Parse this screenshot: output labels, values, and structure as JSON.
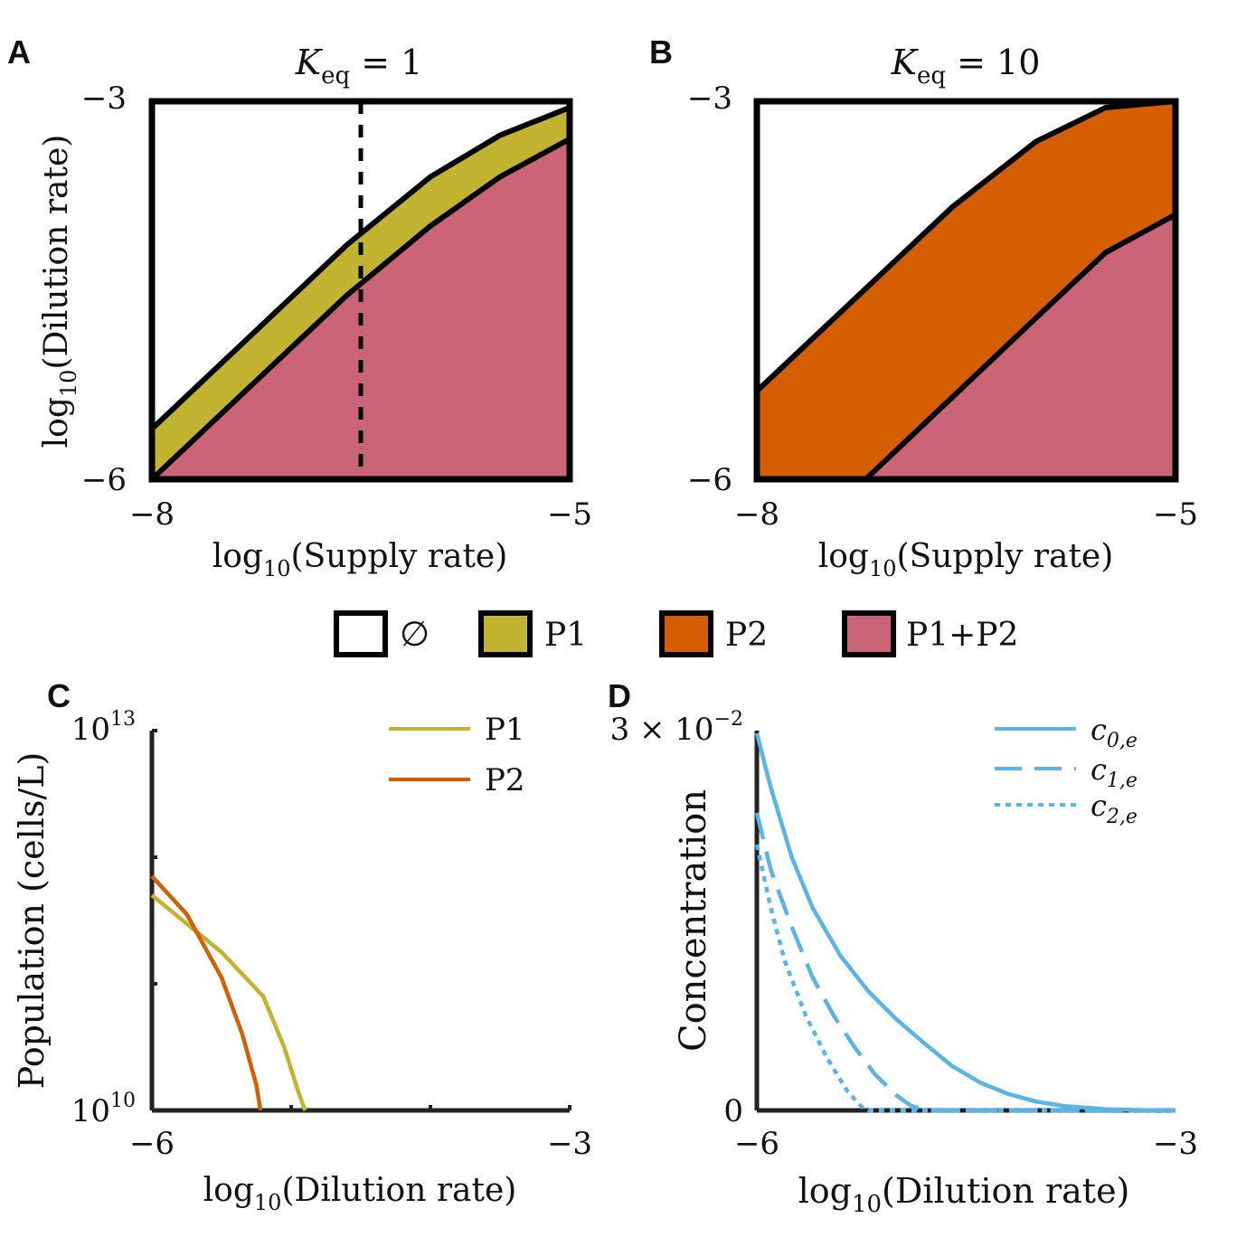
{
  "colors": {
    "none": "#ffffff",
    "P1": "#c2b331",
    "P2": "#d45e00",
    "P1P2": "#cb6476",
    "c_line": "#5ab4e5",
    "frame": "#000000"
  },
  "legend": {
    "items": [
      {
        "key": "none",
        "label": "∅"
      },
      {
        "key": "P1",
        "label": "P1"
      },
      {
        "key": "P2",
        "label": "P2"
      },
      {
        "key": "P1P2",
        "label": "P1+P2"
      }
    ]
  },
  "chart_data": [
    {
      "panel": "A",
      "type": "area",
      "title": "K_eq = 1",
      "title_main": "K",
      "title_sub": "eq",
      "title_rest": " = 1",
      "xlabel_prefix": "log",
      "xlabel_sub": "10",
      "xlabel_rest": "(Supply rate)",
      "ylabel_prefix": "log",
      "ylabel_sub": "10",
      "ylabel_rest": "(Dilution rate)",
      "xlim": [
        -8,
        -5
      ],
      "ylim": [
        -6,
        -3
      ],
      "xticks": [
        "−8",
        "−5"
      ],
      "yticks": [
        "−3",
        "−6"
      ],
      "boundaries": {
        "upper": {
          "x": [
            -8,
            -7.3,
            -6.6,
            -6.0,
            -5.5,
            -5.0
          ],
          "y": [
            -5.6,
            -4.87,
            -4.14,
            -3.6,
            -3.27,
            -3.05
          ]
        },
        "lower": {
          "x": [
            -8,
            -7.3,
            -6.6,
            -6.0,
            -5.5,
            -5.0
          ],
          "y": [
            -6.0,
            -5.27,
            -4.54,
            -3.99,
            -3.6,
            -3.3
          ]
        }
      },
      "regions": [
        "none",
        "P1",
        "P1P2"
      ],
      "vline_x": -6.5
    },
    {
      "panel": "B",
      "type": "area",
      "title": "K_eq = 10",
      "title_main": "K",
      "title_sub": "eq",
      "title_rest": " = 10",
      "xlabel_prefix": "log",
      "xlabel_sub": "10",
      "xlabel_rest": "(Supply rate)",
      "xlim": [
        -8,
        -5
      ],
      "ylim": [
        -6,
        -3
      ],
      "xticks": [
        "−8",
        "−5"
      ],
      "yticks": [
        "−3",
        "−6"
      ],
      "boundaries": {
        "upper": {
          "x": [
            -8,
            -7.3,
            -6.6,
            -6.0,
            -5.5,
            -5.0
          ],
          "y": [
            -5.3,
            -4.57,
            -3.84,
            -3.32,
            -3.05,
            -3.0
          ]
        },
        "lower": {
          "x": [
            -7.22,
            -6.6,
            -6.0,
            -5.5,
            -5.0
          ],
          "y": [
            -6.0,
            -5.35,
            -4.72,
            -4.2,
            -3.9
          ]
        }
      },
      "regions": [
        "none",
        "P2",
        "P1P2"
      ]
    },
    {
      "panel": "C",
      "type": "line",
      "xlabel_prefix": "log",
      "xlabel_sub": "10",
      "xlabel_rest": "(Dilution rate)",
      "ylabel": "Population (cells/L)",
      "xlim": [
        -6,
        -3
      ],
      "ylim_log10": [
        10,
        13
      ],
      "xticks": [
        "−6",
        "−3"
      ],
      "yticks": [
        {
          "base": "10",
          "exp": "13"
        },
        {
          "base": "10",
          "exp": "10"
        }
      ],
      "series": [
        {
          "name": "P1",
          "color_key": "P1",
          "x": [
            -6.0,
            -5.5,
            -5.2,
            -5.05,
            -4.95,
            -4.9
          ],
          "y_log10": [
            11.7,
            11.25,
            10.9,
            10.5,
            10.15,
            10.0
          ]
        },
        {
          "name": "P2",
          "color_key": "P2",
          "x": [
            -6.0,
            -5.75,
            -5.5,
            -5.35,
            -5.25,
            -5.22
          ],
          "y_log10": [
            11.85,
            11.55,
            11.05,
            10.6,
            10.2,
            10.0
          ]
        }
      ]
    },
    {
      "panel": "D",
      "type": "line",
      "xlabel_prefix": "log",
      "xlabel_sub": "10",
      "xlabel_rest": "(Dilution rate)",
      "ylabel": "Concentration",
      "xlim": [
        -6,
        -3
      ],
      "ylim": [
        0,
        0.03
      ],
      "xticks": [
        "−6",
        "−3"
      ],
      "yticks": [
        {
          "text": "3 × 10",
          "exp": "−2"
        },
        {
          "text": "0",
          "exp": ""
        }
      ],
      "series": [
        {
          "name_main": "c",
          "name_sub": "0,e",
          "style": "solid",
          "x": [
            -6.0,
            -5.9,
            -5.75,
            -5.6,
            -5.4,
            -5.2,
            -5.0,
            -4.8,
            -4.6,
            -4.4,
            -4.2,
            -4.0,
            -3.8,
            -3.5,
            -3.2,
            -3.0
          ],
          "y": [
            0.0298,
            0.0255,
            0.02,
            0.016,
            0.0122,
            0.0094,
            0.0072,
            0.0053,
            0.0035,
            0.0022,
            0.0013,
            0.0007,
            0.00035,
            0.0001,
            2e-05,
            0.0
          ]
        },
        {
          "name_main": "c",
          "name_sub": "1,e",
          "style": "dashed",
          "x": [
            -6.0,
            -5.9,
            -5.75,
            -5.6,
            -5.45,
            -5.3,
            -5.15,
            -5.0,
            -4.9,
            -4.8,
            -3.0
          ],
          "y": [
            0.0235,
            0.019,
            0.0145,
            0.0105,
            0.0075,
            0.005,
            0.0028,
            0.0012,
            0.0004,
            0.0,
            0.0
          ]
        },
        {
          "name_main": "c",
          "name_sub": "2,e",
          "style": "dotted",
          "x": [
            -6.0,
            -5.9,
            -5.8,
            -5.65,
            -5.5,
            -5.35,
            -5.25,
            -5.2,
            -3.0
          ],
          "y": [
            0.021,
            0.016,
            0.0118,
            0.0075,
            0.0042,
            0.0015,
            0.0003,
            0.0,
            0.0
          ]
        }
      ]
    }
  ]
}
